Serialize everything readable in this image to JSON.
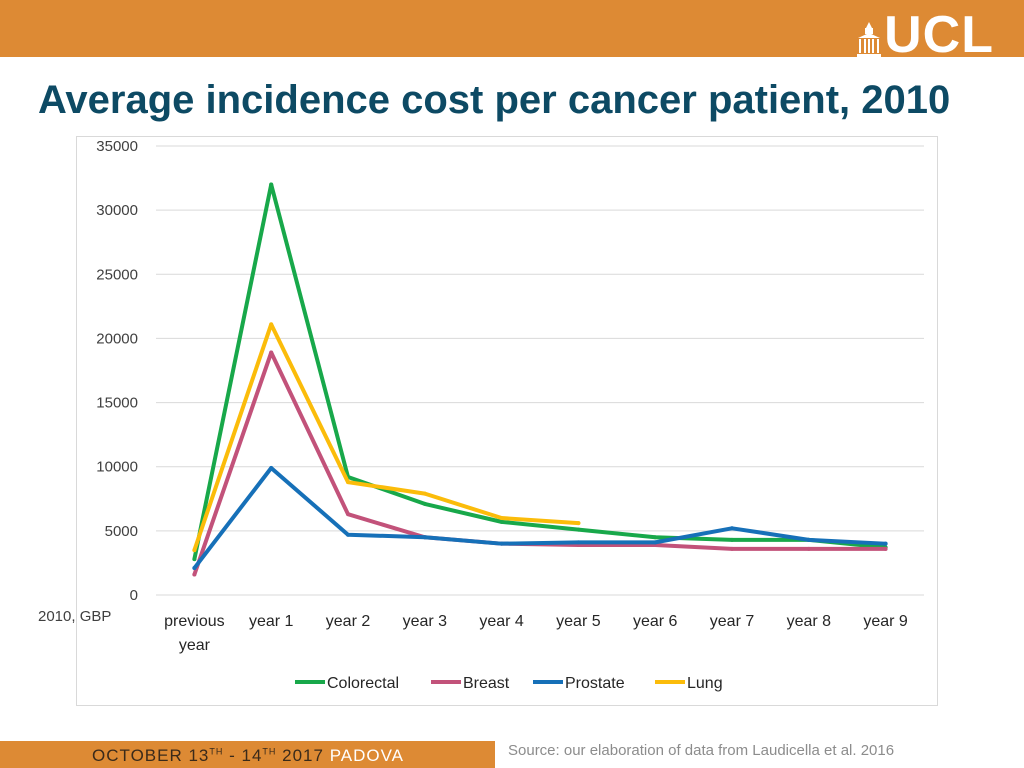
{
  "header": {
    "logo_text": "UCL",
    "title": "Average incidence cost per cancer patient, 2010"
  },
  "unit_note": "2010, GBP",
  "footer": {
    "event_prefix": "OCTOBER 13",
    "event_sup1": "TH",
    "event_mid": " - 14",
    "event_sup2": "TH",
    "event_year": " 2017 ",
    "event_city": "PADOVA",
    "source": "Source: our elaboration of data from Laudicella et al. 2016"
  },
  "colors": {
    "accent": "#dd8a34",
    "title": "#0d4a64"
  },
  "chart_data": {
    "type": "line",
    "categories": [
      [
        "previous",
        "year"
      ],
      [
        "year 1"
      ],
      [
        "year 2"
      ],
      [
        "year 3"
      ],
      [
        "year 4"
      ],
      [
        "year 5"
      ],
      [
        "year 6"
      ],
      [
        "year 7"
      ],
      [
        "year 8"
      ],
      [
        "year 9"
      ]
    ],
    "ylim": [
      0,
      35000
    ],
    "yticks": [
      0,
      5000,
      10000,
      15000,
      20000,
      25000,
      30000,
      35000
    ],
    "grid": true,
    "legend_position": "bottom",
    "series": [
      {
        "name": "Colorectal",
        "color": "#18a84a",
        "values": [
          2800,
          32000,
          9200,
          7100,
          5700,
          5100,
          4500,
          4300,
          4300,
          3700
        ]
      },
      {
        "name": "Breast",
        "color": "#c2527a",
        "values": [
          1600,
          18900,
          6300,
          4500,
          4000,
          3900,
          3900,
          3600,
          3600,
          3600
        ]
      },
      {
        "name": "Prostate",
        "color": "#1670b8",
        "values": [
          2100,
          9900,
          4700,
          4500,
          4000,
          4100,
          4100,
          5200,
          4300,
          4000
        ]
      },
      {
        "name": "Lung",
        "color": "#fbbc0a",
        "values": [
          3500,
          21100,
          8800,
          7900,
          6000,
          5600,
          null,
          null,
          null,
          null
        ]
      }
    ]
  }
}
